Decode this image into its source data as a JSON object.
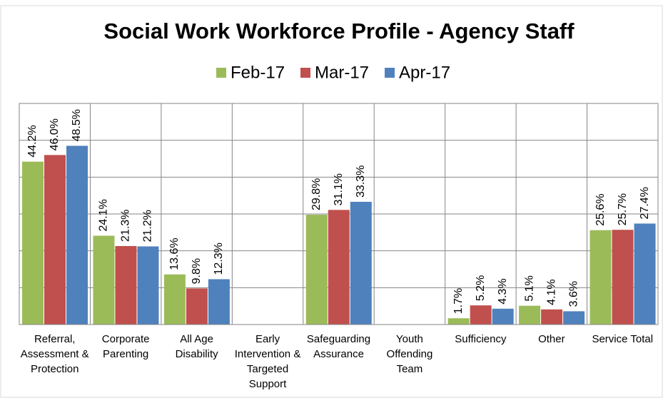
{
  "chart_data": {
    "type": "bar",
    "title": "Social Work Workforce Profile - Agency Staff",
    "categories": [
      "Referral, Assessment & Protection",
      "Corporate Parenting",
      "All Age Disability",
      "Early Intervention & Targeted Support",
      "Safeguarding Assurance",
      "Youth Offending Team",
      "Sufficiency",
      "Other",
      "Service Total"
    ],
    "series": [
      {
        "name": "Feb-17",
        "color": "#9bbb59",
        "values": [
          44.2,
          24.1,
          13.6,
          null,
          29.8,
          null,
          1.7,
          5.1,
          25.6
        ],
        "value_labels": [
          "44.2%",
          "24.1%",
          "13.6%",
          null,
          "29.8%",
          null,
          "1.7%",
          "5.1%",
          "25.6%"
        ]
      },
      {
        "name": "Mar-17",
        "color": "#c0504d",
        "values": [
          46.0,
          21.3,
          9.8,
          null,
          31.1,
          null,
          5.2,
          4.1,
          25.7
        ],
        "value_labels": [
          "46.0%",
          "21.3%",
          "9.8%",
          null,
          "31.1%",
          null,
          "5.2%",
          "4.1%",
          "25.7%"
        ]
      },
      {
        "name": "Apr-17",
        "color": "#4f81bd",
        "values": [
          48.5,
          21.2,
          12.3,
          null,
          33.3,
          null,
          4.3,
          3.6,
          27.4
        ],
        "value_labels": [
          "48.5%",
          "21.2%",
          "12.3%",
          null,
          "33.3%",
          null,
          "4.3%",
          "3.6%",
          "27.4%"
        ]
      }
    ],
    "ylim": [
      0,
      60
    ],
    "yticks": [
      0,
      10,
      20,
      30,
      40,
      50,
      60
    ],
    "grid": true,
    "legend": "top"
  }
}
